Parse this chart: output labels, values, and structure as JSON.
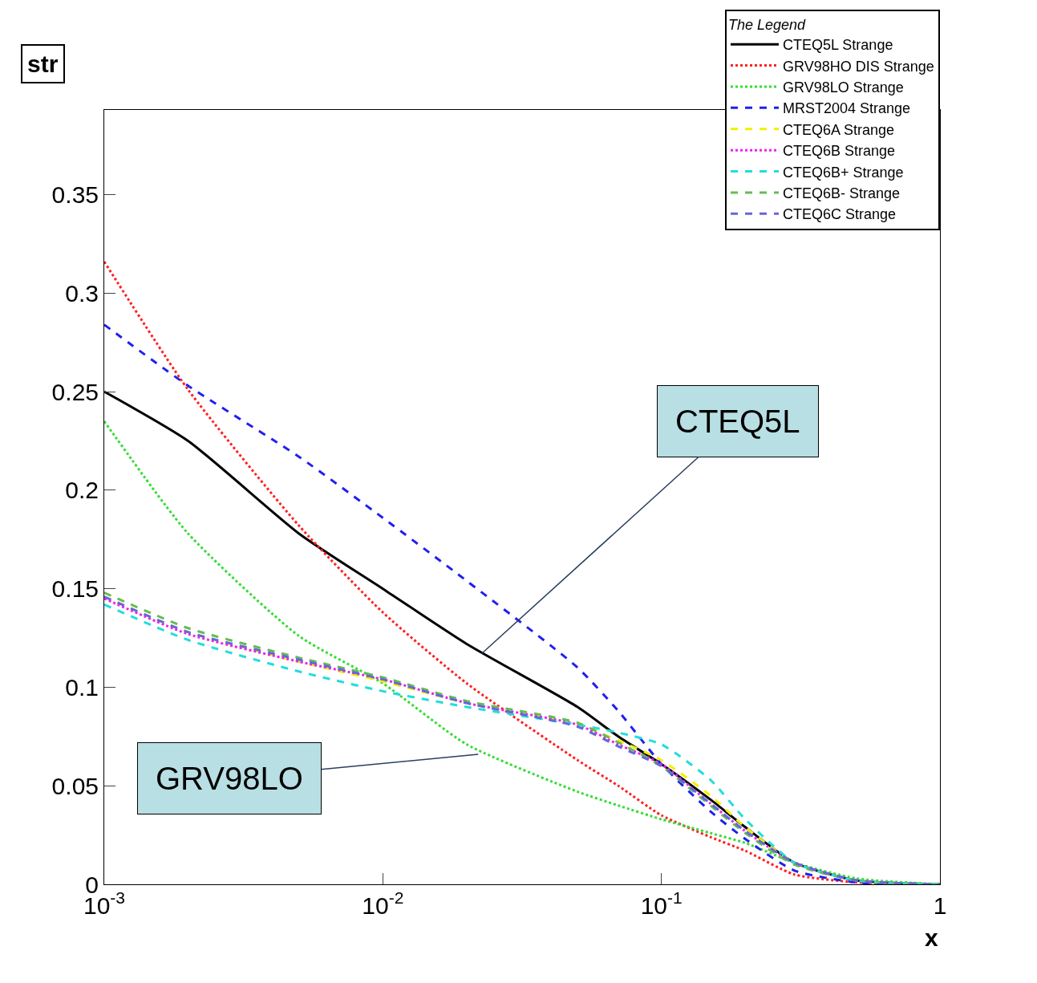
{
  "chart_data": {
    "type": "line",
    "title": "str",
    "xlabel": "x",
    "legend_title": "The Legend",
    "log": "x",
    "legend": "top right",
    "marker": "none",
    "xlim": [
      0.001,
      1
    ],
    "xticks": [
      {
        "value": 0.001,
        "label": "10$^{-3}$"
      },
      {
        "value": 0.01,
        "label": "10$^{-2}$"
      },
      {
        "value": 0.1,
        "label": "10$^{-1}$"
      },
      1
    ],
    "ylim": [
      0,
      0.393
    ],
    "yticks": [
      0,
      0.05,
      0.1,
      0.15,
      0.2,
      0.25,
      0.3,
      0.35
    ],
    "x": [
      0.001,
      0.002,
      0.005,
      0.01,
      0.02,
      0.05,
      0.07,
      0.1,
      0.15,
      0.2,
      0.3,
      0.5,
      1
    ],
    "series": [
      {
        "name": "CTEQ5L Strange",
        "color": "#000000",
        "line_style": "solid",
        "values": [
          0.25,
          0.225,
          0.178,
          0.15,
          0.122,
          0.09,
          0.075,
          0.061,
          0.043,
          0.029,
          0.011,
          0.002,
          0
        ]
      },
      {
        "name": "GRV98HO DIS Strange",
        "color": "#ff2020",
        "line_style": "dotted",
        "values": [
          0.316,
          0.251,
          0.182,
          0.138,
          0.102,
          0.063,
          0.05,
          0.035,
          0.024,
          0.017,
          0.005,
          0.001,
          0
        ]
      },
      {
        "name": "GRV98LO Strange",
        "color": "#33dd33",
        "line_style": "dotted",
        "values": [
          0.235,
          0.178,
          0.126,
          0.102,
          0.071,
          0.047,
          0.04,
          0.033,
          0.026,
          0.021,
          0.011,
          0.003,
          0
        ]
      },
      {
        "name": "MRST2004 Strange",
        "color": "#2020ee",
        "line_style": "dashed",
        "values": [
          0.284,
          0.253,
          0.217,
          0.186,
          0.154,
          0.11,
          0.088,
          0.061,
          0.037,
          0.023,
          0.007,
          0.001,
          0
        ]
      },
      {
        "name": "CTEQ6A Strange",
        "color": "#f0f000",
        "line_style": "dashed",
        "values": [
          0.146,
          0.128,
          0.113,
          0.103,
          0.092,
          0.081,
          0.073,
          0.063,
          0.045,
          0.029,
          0.011,
          0.002,
          0
        ]
      },
      {
        "name": "CTEQ6B Strange",
        "color": "#ee22ee",
        "line_style": "dotted",
        "values": [
          0.145,
          0.127,
          0.113,
          0.104,
          0.092,
          0.081,
          0.071,
          0.061,
          0.041,
          0.027,
          0.011,
          0.002,
          0
        ]
      },
      {
        "name": "CTEQ6B+ Strange",
        "color": "#22dddd",
        "line_style": "dashed",
        "values": [
          0.142,
          0.124,
          0.108,
          0.098,
          0.09,
          0.081,
          0.077,
          0.071,
          0.053,
          0.033,
          0.011,
          0.002,
          0
        ]
      },
      {
        "name": "CTEQ6B- Strange",
        "color": "#66bb55",
        "line_style": "dashed",
        "values": [
          0.148,
          0.13,
          0.115,
          0.105,
          0.093,
          0.082,
          0.072,
          0.06,
          0.04,
          0.026,
          0.01,
          0.002,
          0
        ]
      },
      {
        "name": "CTEQ6C Strange",
        "color": "#6666dd",
        "line_style": "dashed",
        "values": [
          0.146,
          0.128,
          0.114,
          0.104,
          0.092,
          0.08,
          0.07,
          0.06,
          0.041,
          0.027,
          0.011,
          0.002,
          0
        ]
      }
    ],
    "annotations": [
      {
        "text": "CTEQ5L",
        "x": 0.0226,
        "y": 0.117
      },
      {
        "text": "GRV98LO",
        "x": 0.022,
        "y": 0.066
      }
    ]
  }
}
